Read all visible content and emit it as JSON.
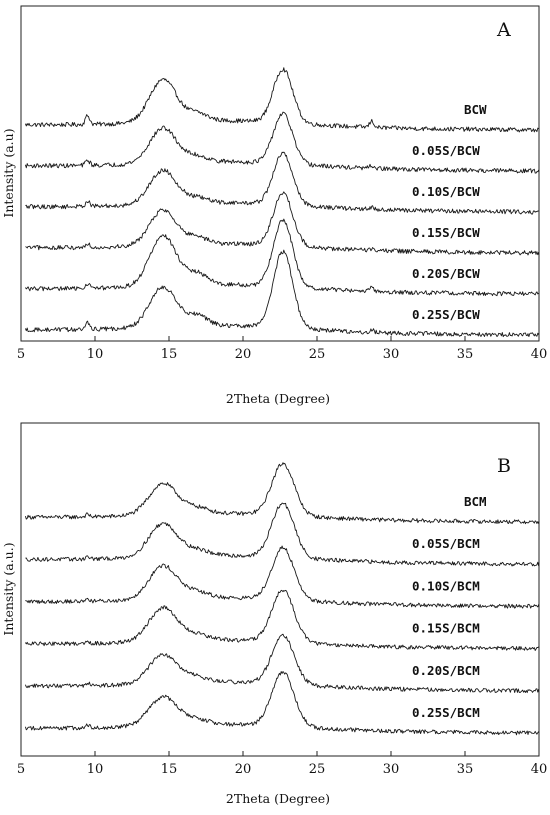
{
  "chart_data": [
    {
      "type": "line",
      "panel": "A",
      "ylabel": "Intensity (a.u)",
      "xlabel": "2Theta (Degree)",
      "xlim": [
        5,
        40
      ],
      "xticks": [
        5,
        10,
        15,
        20,
        25,
        30,
        35,
        40
      ],
      "yticks": "none",
      "grid": false,
      "legend": "labels next to each trace (right side)",
      "series": [
        {
          "name": "BCW",
          "baseline": 5.0,
          "peaks": [
            {
              "x": 9.5,
              "height": 0.7,
              "width": 0.15
            },
            {
              "x": 14.6,
              "height": 3.4,
              "width": 0.9
            },
            {
              "x": 16.9,
              "height": 0.6,
              "width": 0.7
            },
            {
              "x": 22.7,
              "height": 4.3,
              "width": 0.65
            },
            {
              "x": 28.7,
              "height": 0.5,
              "width": 0.15
            }
          ]
        },
        {
          "name": "0.05S/BCW",
          "baseline": 4.0,
          "peaks": [
            {
              "x": 9.5,
              "height": 0.4,
              "width": 0.15
            },
            {
              "x": 14.6,
              "height": 2.8,
              "width": 0.9
            },
            {
              "x": 16.9,
              "height": 0.45,
              "width": 0.7
            },
            {
              "x": 22.7,
              "height": 4.0,
              "width": 0.65
            },
            {
              "x": 28.7,
              "height": 0.2,
              "width": 0.15
            }
          ]
        },
        {
          "name": "0.10S/BCW",
          "baseline": 3.0,
          "peaks": [
            {
              "x": 9.5,
              "height": 0.4,
              "width": 0.15
            },
            {
              "x": 14.6,
              "height": 2.7,
              "width": 0.9
            },
            {
              "x": 16.9,
              "height": 0.4,
              "width": 0.7
            },
            {
              "x": 22.7,
              "height": 4.1,
              "width": 0.65
            },
            {
              "x": 28.7,
              "height": 0.15,
              "width": 0.15
            }
          ]
        },
        {
          "name": "0.15S/BCW",
          "baseline": 2.0,
          "peaks": [
            {
              "x": 9.5,
              "height": 0.3,
              "width": 0.15
            },
            {
              "x": 14.6,
              "height": 2.8,
              "width": 0.9
            },
            {
              "x": 16.9,
              "height": 0.5,
              "width": 0.7
            },
            {
              "x": 22.7,
              "height": 4.2,
              "width": 0.65
            },
            {
              "x": 28.7,
              "height": 0.15,
              "width": 0.15
            }
          ]
        },
        {
          "name": "0.20S/BCW",
          "baseline": 1.0,
          "peaks": [
            {
              "x": 9.5,
              "height": 0.4,
              "width": 0.15
            },
            {
              "x": 14.6,
              "height": 4.0,
              "width": 0.9
            },
            {
              "x": 16.9,
              "height": 0.9,
              "width": 0.7
            },
            {
              "x": 22.7,
              "height": 5.3,
              "width": 0.65
            },
            {
              "x": 28.7,
              "height": 0.3,
              "width": 0.15
            }
          ]
        },
        {
          "name": "0.25S/BCW",
          "baseline": 0.0,
          "peaks": [
            {
              "x": 9.5,
              "height": 0.5,
              "width": 0.15
            },
            {
              "x": 14.6,
              "height": 3.2,
              "width": 0.9
            },
            {
              "x": 16.9,
              "height": 0.8,
              "width": 0.7
            },
            {
              "x": 22.7,
              "height": 6.1,
              "width": 0.65
            },
            {
              "x": 28.7,
              "height": 0.2,
              "width": 0.15
            }
          ]
        }
      ]
    },
    {
      "type": "line",
      "panel": "B",
      "ylabel": "Intensity (a.u.)",
      "xlabel": "2Theta (Degree)",
      "xlim": [
        5,
        40
      ],
      "xticks": [
        5,
        10,
        15,
        20,
        25,
        30,
        35,
        40
      ],
      "yticks": "none",
      "grid": false,
      "legend": "labels next to each trace (right side)",
      "series": [
        {
          "name": "BCM",
          "baseline": 5.0,
          "peaks": [
            {
              "x": 9.5,
              "height": 0.2,
              "width": 0.15
            },
            {
              "x": 14.6,
              "height": 2.7,
              "width": 0.95
            },
            {
              "x": 16.9,
              "height": 0.5,
              "width": 0.8
            },
            {
              "x": 22.7,
              "height": 4.5,
              "width": 0.75
            }
          ]
        },
        {
          "name": "0.05S/BCM",
          "baseline": 4.0,
          "peaks": [
            {
              "x": 9.5,
              "height": 0.2,
              "width": 0.15
            },
            {
              "x": 14.6,
              "height": 2.9,
              "width": 0.95
            },
            {
              "x": 16.9,
              "height": 0.5,
              "width": 0.8
            },
            {
              "x": 22.7,
              "height": 4.7,
              "width": 0.75
            }
          ]
        },
        {
          "name": "0.10S/BCM",
          "baseline": 3.0,
          "peaks": [
            {
              "x": 9.5,
              "height": 0.2,
              "width": 0.15
            },
            {
              "x": 14.6,
              "height": 2.9,
              "width": 0.95
            },
            {
              "x": 16.9,
              "height": 0.5,
              "width": 0.8
            },
            {
              "x": 22.7,
              "height": 4.5,
              "width": 0.75
            }
          ]
        },
        {
          "name": "0.15S/BCM",
          "baseline": 2.0,
          "peaks": [
            {
              "x": 9.5,
              "height": 0.2,
              "width": 0.15
            },
            {
              "x": 14.6,
              "height": 2.9,
              "width": 0.95
            },
            {
              "x": 16.9,
              "height": 0.45,
              "width": 0.8
            },
            {
              "x": 22.7,
              "height": 4.5,
              "width": 0.75
            }
          ]
        },
        {
          "name": "0.20S/BCM",
          "baseline": 1.0,
          "peaks": [
            {
              "x": 9.5,
              "height": 0.2,
              "width": 0.15
            },
            {
              "x": 14.6,
              "height": 2.5,
              "width": 0.95
            },
            {
              "x": 16.9,
              "height": 0.45,
              "width": 0.8
            },
            {
              "x": 22.7,
              "height": 4.2,
              "width": 0.75
            }
          ]
        },
        {
          "name": "0.25S/BCM",
          "baseline": 0.0,
          "peaks": [
            {
              "x": 9.5,
              "height": 0.2,
              "width": 0.15
            },
            {
              "x": 14.6,
              "height": 2.5,
              "width": 0.95
            },
            {
              "x": 16.9,
              "height": 0.45,
              "width": 0.8
            },
            {
              "x": 22.7,
              "height": 4.7,
              "width": 0.75
            }
          ]
        }
      ]
    }
  ]
}
